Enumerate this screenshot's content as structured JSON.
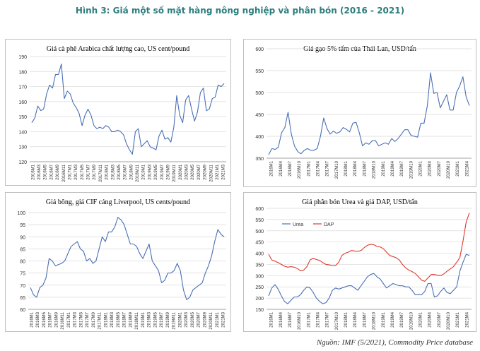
{
  "page_title": "Hình 3: Giá một số mặt hàng nông nghiệp và phân bón (2016 - 2021)",
  "source": "Nguồn: IMF (5/2021), Commodity Price database",
  "colors": {
    "title": "#2e7d7d",
    "line_blue": "#4a6fb5",
    "line_red": "#e0382c"
  },
  "chart_data": [
    {
      "type": "line",
      "title": "Giá cà phê Arabica chất lượng cao, US cent/pound",
      "ylim": [
        120,
        190
      ],
      "yticks": [
        120,
        130,
        140,
        150,
        160,
        170,
        180,
        190
      ],
      "xticks": [
        "2016M1",
        "2016M3",
        "2016M5",
        "2016M7",
        "2016M9",
        "2016M11",
        "2017M1",
        "2017M3",
        "2017M5",
        "2017M7",
        "2017M9",
        "2017M11",
        "2018M1",
        "2018M3",
        "2018M5",
        "2018M7",
        "2018M9",
        "2018M11",
        "2019M1",
        "2019M3",
        "2019M5",
        "2019M7",
        "2019M9",
        "2019M11",
        "2020M1",
        "2020M3",
        "2020M5",
        "2020M7",
        "2020M9",
        "2020M11",
        "2021M1",
        "2021M3"
      ],
      "series": [
        {
          "values": [
            146,
            149,
            157,
            154,
            155,
            165,
            171,
            169,
            178,
            178,
            185,
            162,
            167,
            165,
            159,
            156,
            152,
            144,
            151,
            155,
            151,
            144,
            142,
            143,
            142,
            144,
            143,
            140,
            140,
            141,
            140,
            138,
            132,
            128,
            125,
            140,
            142,
            130,
            132,
            134,
            130,
            129,
            128,
            137,
            141,
            135,
            136,
            133,
            143,
            164,
            151,
            146,
            161,
            164,
            155,
            147,
            153,
            166,
            169,
            154,
            155,
            162,
            163,
            171,
            170,
            172
          ]
        }
      ]
    },
    {
      "type": "line",
      "title": "Giá gạo 5% tấm của Thái Lan, USD/tấn",
      "ylim": [
        350,
        600
      ],
      "yticks": [
        350,
        400,
        450,
        500,
        550,
        600
      ],
      "xticks": [
        "2016M1",
        "2016M4",
        "2016M7",
        "2016M10",
        "2017M1",
        "2017M4",
        "2017M7",
        "2017M10",
        "2018M1",
        "2018M4",
        "2018M7",
        "2018M10",
        "2019M1",
        "2019M4",
        "2019M7",
        "2019M10",
        "2020M1",
        "2020M4",
        "2020M7",
        "2020M10",
        "2021M1",
        "2021M4"
      ],
      "series": [
        {
          "values": [
            358,
            372,
            370,
            375,
            408,
            420,
            455,
            405,
            378,
            365,
            360,
            368,
            372,
            368,
            368,
            372,
            400,
            442,
            418,
            405,
            412,
            407,
            410,
            420,
            416,
            410,
            430,
            432,
            408,
            378,
            385,
            382,
            390,
            390,
            378,
            382,
            385,
            382,
            395,
            388,
            395,
            405,
            415,
            415,
            402,
            400,
            398,
            430,
            430,
            470,
            545,
            498,
            500,
            465,
            480,
            495,
            460,
            460,
            500,
            515,
            536,
            490,
            470
          ]
        }
      ]
    },
    {
      "type": "line",
      "title": "Giá bông, giá CIF cảng Liverpool, US cents/pound",
      "ylim": [
        60,
        100
      ],
      "yticks": [
        60,
        65,
        70,
        75,
        80,
        85,
        90,
        95,
        100
      ],
      "xticks": [
        "2016M1",
        "2016M3",
        "2016M5",
        "2016M7",
        "2016M9",
        "2016M11",
        "2017M1",
        "2017M3",
        "2017M5",
        "2017M7",
        "2017M9",
        "2017M11",
        "2018M1",
        "2018M3",
        "2018M5",
        "2018M7",
        "2018M9",
        "2018M11",
        "2019M1",
        "2019M3",
        "2019M5",
        "2019M7",
        "2019M9",
        "2019M11",
        "2020M1",
        "2020M3",
        "2020M5",
        "2020M7",
        "2020M9",
        "2020M11",
        "2021M1",
        "2021M3"
      ],
      "series": [
        {
          "values": [
            69,
            66,
            65,
            69,
            70,
            73,
            81,
            80,
            78,
            78.5,
            79,
            80,
            83,
            86,
            87,
            88,
            85,
            84,
            80,
            81,
            79,
            80,
            85,
            90,
            88,
            92,
            92,
            94,
            98,
            97,
            95,
            91,
            87,
            87,
            86,
            83,
            81,
            84,
            87,
            80,
            78,
            76,
            71,
            72,
            75,
            75,
            76,
            79,
            76,
            68,
            64,
            65,
            68,
            69,
            70,
            71,
            75,
            78,
            82,
            88,
            93,
            91,
            90
          ]
        }
      ]
    },
    {
      "type": "line",
      "title": "Giá phân bón Urea và giá DAP, USD/tấn",
      "ylim": [
        150,
        600
      ],
      "yticks": [
        150,
        200,
        250,
        300,
        350,
        400,
        450,
        500,
        550,
        600
      ],
      "xticks": [
        "2016M1",
        "2016M4",
        "2016M7",
        "2016M10",
        "2017M1",
        "2017M4",
        "2017M7",
        "2017M10",
        "2018M1",
        "2018M4",
        "2018M7",
        "2018M10",
        "2019M1",
        "2019M4",
        "2019M7",
        "2019M10",
        "2020M1",
        "2020M4",
        "2020M7",
        "2020M10",
        "2021M1",
        "2021M4"
      ],
      "legend": [
        "Urea",
        "DAP"
      ],
      "series": [
        {
          "name": "Urea",
          "values": [
            210,
            245,
            260,
            240,
            210,
            185,
            175,
            190,
            205,
            205,
            215,
            235,
            250,
            245,
            225,
            200,
            185,
            175,
            180,
            200,
            235,
            245,
            240,
            245,
            250,
            255,
            255,
            245,
            235,
            255,
            275,
            295,
            305,
            310,
            295,
            285,
            265,
            245,
            255,
            265,
            260,
            255,
            255,
            250,
            250,
            235,
            215,
            215,
            215,
            230,
            265,
            265,
            205,
            210,
            230,
            245,
            225,
            220,
            235,
            250,
            320,
            360,
            395,
            390
          ]
        },
        {
          "name": "DAP",
          "values": [
            395,
            370,
            365,
            358,
            350,
            342,
            338,
            340,
            338,
            332,
            322,
            325,
            340,
            370,
            378,
            372,
            368,
            358,
            350,
            348,
            345,
            345,
            360,
            390,
            400,
            405,
            412,
            410,
            408,
            412,
            425,
            435,
            440,
            438,
            430,
            428,
            420,
            405,
            390,
            385,
            380,
            370,
            350,
            335,
            325,
            318,
            310,
            295,
            280,
            275,
            290,
            305,
            305,
            302,
            300,
            308,
            320,
            330,
            340,
            360,
            380,
            455,
            540,
            580
          ]
        }
      ]
    }
  ]
}
